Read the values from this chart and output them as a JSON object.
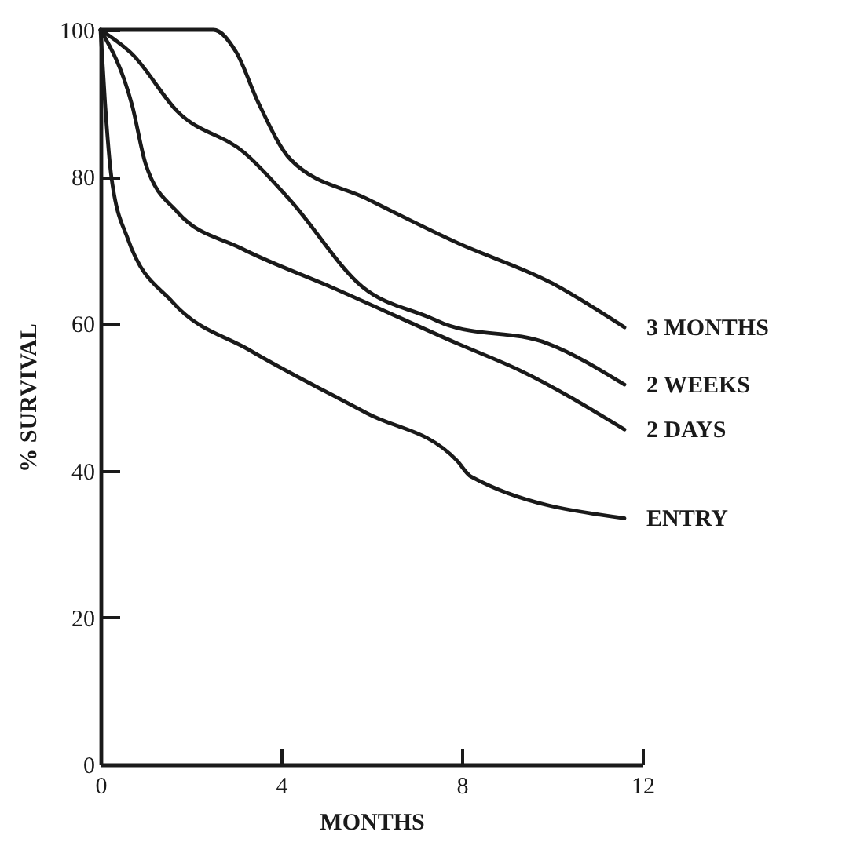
{
  "chart_data": {
    "type": "line",
    "xlabel": "MONTHS",
    "ylabel": "% SURVIVAL",
    "xlim": [
      0,
      12
    ],
    "ylim": [
      0,
      100
    ],
    "xticks": [
      0,
      4,
      8,
      12
    ],
    "yticks": [
      0,
      20,
      40,
      60,
      80,
      100
    ],
    "grid": false,
    "legend": false,
    "line_style": "solid",
    "series": [
      {
        "name": "3 MONTHS",
        "color": "#1a1a1a",
        "x": [
          0,
          2.5,
          3.0,
          3.5,
          4.2,
          5.9,
          7.9,
          10,
          11.6
        ],
        "values": [
          100,
          100,
          97,
          90,
          82.4,
          77,
          71,
          65.5,
          59.5
        ]
      },
      {
        "name": "2 WEEKS",
        "color": "#1a1a1a",
        "x": [
          0,
          0.7,
          1.7,
          3.2,
          4.2,
          5.8,
          7.3,
          7.6,
          9.9,
          11.6
        ],
        "values": [
          100,
          96.7,
          88.9,
          83.2,
          76.8,
          65,
          60.8,
          60,
          57.3,
          51.7
        ]
      },
      {
        "name": "2 DAYS",
        "color": "#1a1a1a",
        "x": [
          0,
          0.7,
          1.0,
          1.7,
          3.1,
          5.1,
          7.9,
          9.3,
          11.6
        ],
        "values": [
          100,
          89.7,
          81.7,
          75.2,
          70.3,
          65,
          57.3,
          53.6,
          45.6
        ]
      },
      {
        "name": "ENTRY",
        "color": "#1a1a1a",
        "x": [
          0,
          0.1,
          0.24,
          0.6,
          1.6,
          3.3,
          5.9,
          7.9,
          8.2,
          11.6
        ],
        "values": [
          100,
          90,
          80,
          71.6,
          62.9,
          56.4,
          47.8,
          41.3,
          39.2,
          33.5
        ]
      }
    ]
  }
}
